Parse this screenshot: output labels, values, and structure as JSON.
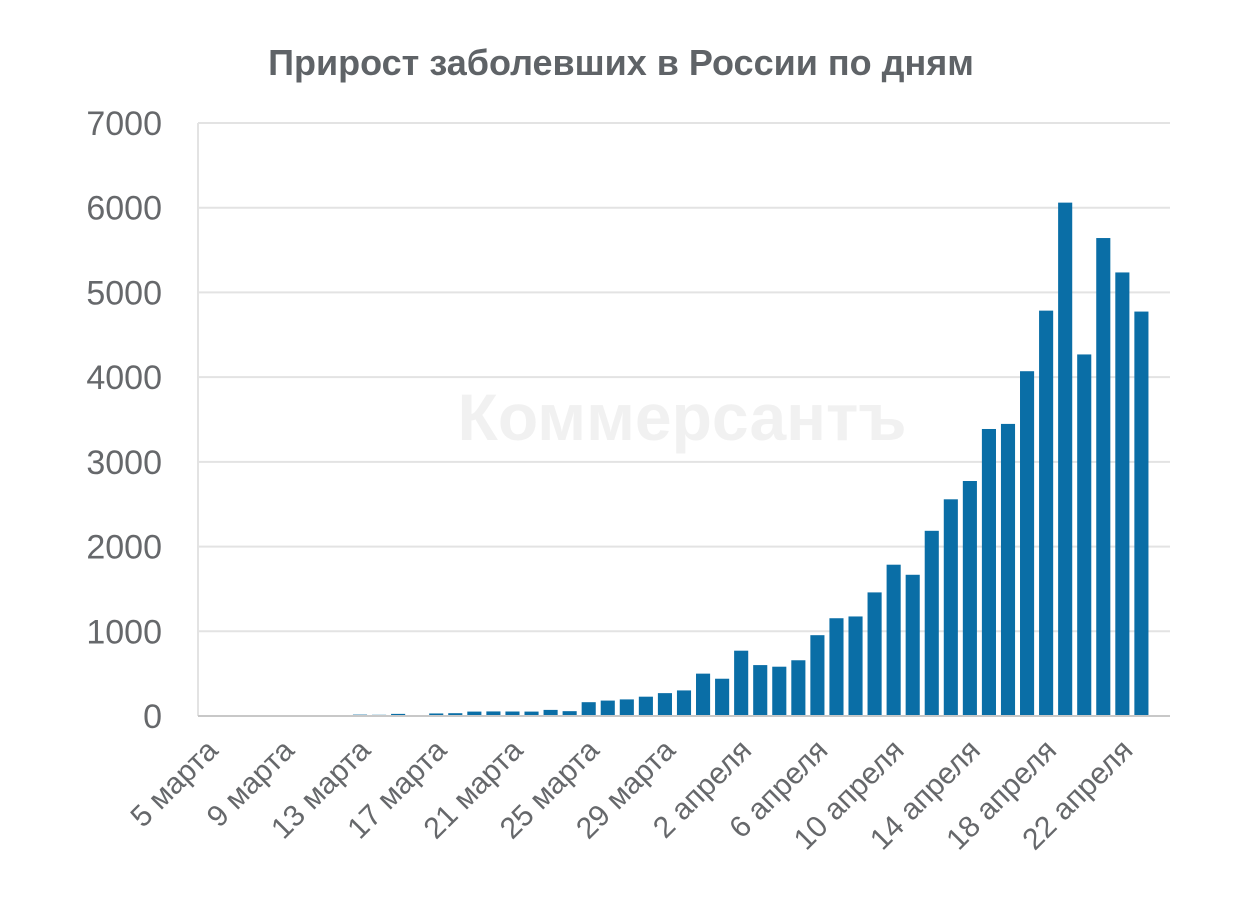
{
  "chart_data": {
    "type": "bar",
    "title": "Прирост заболевших в России по дням",
    "watermark": "Коммерсантъ",
    "xlabel": "",
    "ylabel": "",
    "ylim": [
      0,
      7000
    ],
    "yticks": [
      0,
      1000,
      2000,
      3000,
      4000,
      5000,
      6000,
      7000
    ],
    "x_tick_labels": [
      "5 марта",
      "9 марта",
      "13 марта",
      "17 марта",
      "21 марта",
      "25 марта",
      "29 марта",
      "2 апреля",
      "6 апреля",
      "10 апреля",
      "14 апреля",
      "18 апреля",
      "22 апреля"
    ],
    "x_tick_every": 4,
    "grid": true,
    "bar_color": "#0a6ea6",
    "grid_color": "#e3e3e3",
    "text_color": "#66686b",
    "categories": [
      "5 марта",
      "6 марта",
      "7 марта",
      "8 марта",
      "9 марта",
      "10 марта",
      "11 марта",
      "12 марта",
      "13 марта",
      "14 марта",
      "15 марта",
      "16 марта",
      "17 марта",
      "18 марта",
      "19 марта",
      "20 марта",
      "21 марта",
      "22 марта",
      "23 марта",
      "24 марта",
      "25 марта",
      "26 марта",
      "27 марта",
      "28 марта",
      "29 марта",
      "30 марта",
      "31 марта",
      "1 апреля",
      "2 апреля",
      "3 апреля",
      "4 апреля",
      "5 апреля",
      "6 апреля",
      "7 апреля",
      "8 апреля",
      "9 апреля",
      "10 апреля",
      "11 апреля",
      "12 апреля",
      "13 апреля",
      "14 апреля",
      "15 апреля",
      "16 апреля",
      "17 апреля",
      "18 апреля",
      "19 апреля",
      "20 апреля",
      "21 апреля",
      "22 апреля",
      "23 апреля",
      "24 апреля"
    ],
    "values": [
      4,
      3,
      0,
      2,
      0,
      3,
      8,
      6,
      16,
      14,
      25,
      0,
      30,
      33,
      52,
      54,
      53,
      52,
      72,
      57,
      163,
      182,
      196,
      228,
      270,
      302,
      500,
      440,
      771,
      601,
      582,
      658,
      954,
      1154,
      1175,
      1459,
      1786,
      1667,
      2186,
      2558,
      2774,
      3388,
      3448,
      4070,
      4785,
      6060,
      4268,
      5642,
      5236,
      4774,
      0
    ]
  }
}
